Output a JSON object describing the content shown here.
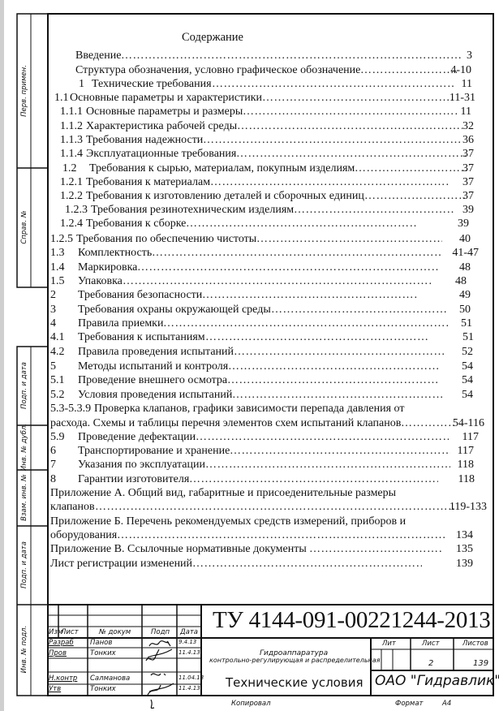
{
  "sidebar": {
    "top": [
      "Перв. примен.",
      "Справ. №"
    ],
    "bottom": [
      "Подп. и дата",
      "Инв. № дубл.",
      "Взам. инв. №",
      "Подп. и дата",
      "Инв. № подл."
    ]
  },
  "toc": {
    "heading": "Содержание",
    "entries": [
      {
        "num": "",
        "title": "Введение",
        "page": "3"
      },
      {
        "num": "",
        "title": "Структура обозначения, условно графическое обозначение",
        "page": "4-10"
      },
      {
        "num": "1",
        "title": "Технические требования",
        "page": "11"
      },
      {
        "num": "1.1",
        "title": "Основные параметры и характеристики",
        "page": "11-31"
      },
      {
        "num": "1.1.1",
        "title": "Основные параметры и размеры",
        "page": "11"
      },
      {
        "num": "1.1.2",
        "title": "Характеристика рабочей среды",
        "page": "32"
      },
      {
        "num": "1.1.3",
        "title": "Требования надежности",
        "page": "36"
      },
      {
        "num": "1.1.4",
        "title": "Эксплуатационные требования",
        "page": "37"
      },
      {
        "num": "1.2",
        "title": "Требования к сырью, материалам, покупным изделиям",
        "page": "37"
      },
      {
        "num": "1.2.1",
        "title": "Требования к материалам",
        "page": "37"
      },
      {
        "num": "1.2.2",
        "title": "Требования к изготовлению деталей и сборочных единиц",
        "page": "37"
      },
      {
        "num": "1.2.3",
        "title": "Требования резинотехническим изделиям",
        "page": "39"
      },
      {
        "num": "1.2.4",
        "title": "Требования к сборке",
        "page": "39"
      },
      {
        "num": "1.2.5",
        "title": "Требования по обеспечению чистоты",
        "page": "40"
      },
      {
        "num": "1.3",
        "title": "Комплектность",
        "page": "41-47"
      },
      {
        "num": "1.4",
        "title": "Маркировка",
        "page": "48"
      },
      {
        "num": "1.5",
        "title": "Упаковка",
        "page": "48"
      },
      {
        "num": "2",
        "title": "Требования безопасности",
        "page": "49"
      },
      {
        "num": "3",
        "title": "Требования охраны окружающей среды",
        "page": "50"
      },
      {
        "num": "4",
        "title": "Правила приемки",
        "page": "51"
      },
      {
        "num": "4.1",
        "title": "Требования к испытаниям",
        "page": "51"
      },
      {
        "num": "4.2",
        "title": "Правила проведения испытаний",
        "page": "52"
      },
      {
        "num": "5",
        "title": "Методы испытаний и контроля",
        "page": "54"
      },
      {
        "num": "5.1",
        "title": "Проведение внешнего осмотра",
        "page": "54"
      },
      {
        "num": "5.2",
        "title": "Условия проведения испытаний",
        "page": "54"
      },
      {
        "num": "5.3-5.3.9",
        "title": "Проверка  клапанов, графики зависимости перепада давления от",
        "page": ""
      },
      {
        "num": "",
        "title": "расхода. Схемы и таблицы перечня элементов схем испытаний клапанов",
        "page": "54-116"
      },
      {
        "num": "5.9",
        "title": "Проведение дефектации",
        "page": "117"
      },
      {
        "num": "6",
        "title": "Транспортирование и хранение",
        "page": "117"
      },
      {
        "num": "7",
        "title": "Указания по эксплуатации",
        "page": "118"
      },
      {
        "num": "8",
        "title": "Гарантии изготовителя",
        "page": "118"
      },
      {
        "num": "",
        "title": "Приложение А.   Общий вид, габаритные и присоеденительные размеры",
        "page": ""
      },
      {
        "num": "",
        "title": "клапанов",
        "page": "119-133"
      },
      {
        "num": "",
        "title": "Приложение Б. Перечень рекомендуемых средств измерений, приборов и",
        "page": ""
      },
      {
        "num": "",
        "title": "оборудования",
        "page": "134"
      },
      {
        "num": "",
        "title": "Приложение В.  Ссылочные нормативные документы",
        "page": "135"
      },
      {
        "num": "",
        "title": "Лист регистрации изменений",
        "page": "139"
      }
    ]
  },
  "title_block": {
    "designation": "ТУ 4144-091-00221244-2013",
    "headers": {
      "change": "Изм",
      "sheet": "Лист",
      "doc_no": "№ докум",
      "signature": "Подп",
      "date": "Дата"
    },
    "signers": [
      {
        "role": "Разраб",
        "name": "Панов",
        "date": "9.4.13"
      },
      {
        "role": "Пров",
        "name": "Тонких",
        "date": "11.4.13"
      },
      {
        "role": "Н.контр",
        "name": "Салманова",
        "date": "11.04.13"
      },
      {
        "role": "Утв",
        "name": "Тонких",
        "date": "11.4.13"
      }
    ],
    "product_line1": "Гидроаппаратура",
    "product_line2": "контрольно-регулирующая и распределительная",
    "doc_type": "Технические условия",
    "lit_label": "Лит",
    "sheet_label": "Лист",
    "sheets_label": "Листов",
    "sheet": "2",
    "sheets": "139",
    "organization": "ОАО \"Гидравлик\"",
    "copied_label": "Копировал",
    "format_label": "Формат",
    "format": "А4"
  }
}
